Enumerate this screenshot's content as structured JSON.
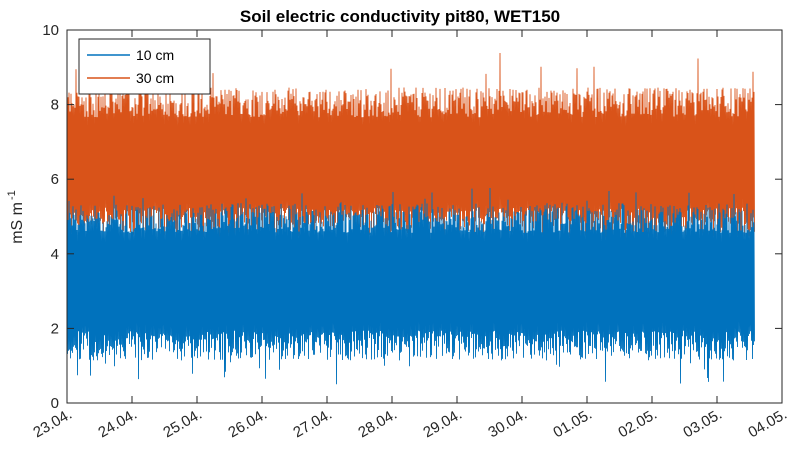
{
  "chart_data": {
    "type": "line",
    "title": "Soil electric conductivity pit80, WET150",
    "xlabel": "",
    "ylabel": "mS m",
    "ylabel_superscript": "-1",
    "x_tick_labels": [
      "23.04.",
      "24.04.",
      "25.04.",
      "26.04.",
      "27.04.",
      "28.04.",
      "29.04.",
      "30.04.",
      "01.05.",
      "02.05.",
      "03.05.",
      "04.05."
    ],
    "x_range": [
      "23.04.",
      "04.05."
    ],
    "x_data_end": "03.05. ~14:00",
    "ylim": [
      0,
      10
    ],
    "y_ticks": [
      0,
      2,
      4,
      6,
      8,
      10
    ],
    "grid": false,
    "legend_position": "top-left",
    "series": [
      {
        "name": "10 cm",
        "color": "#0072BD",
        "approx_mean": 3.2,
        "approx_min": 0.5,
        "approx_max": 5.8
      },
      {
        "name": "30 cm",
        "color": "#D95319",
        "approx_mean": 6.5,
        "approx_min": 4.2,
        "approx_max": 9.4
      }
    ]
  }
}
